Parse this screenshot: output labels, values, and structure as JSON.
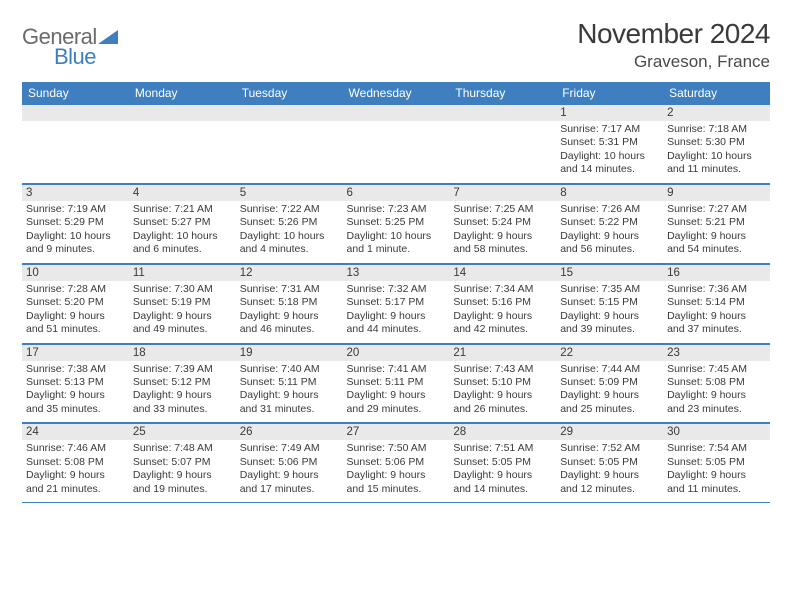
{
  "logo": {
    "part1": "General",
    "part2": "Blue"
  },
  "title": "November 2024",
  "location": "Graveson, France",
  "colors": {
    "header_bg": "#3f7fbf",
    "header_text": "#ffffff",
    "daynum_bg": "#e9e9e9",
    "border": "#3f7fbf",
    "text": "#3a3a3a",
    "logo_gray": "#6b6b6b",
    "logo_blue": "#3f7fbf"
  },
  "day_names": [
    "Sunday",
    "Monday",
    "Tuesday",
    "Wednesday",
    "Thursday",
    "Friday",
    "Saturday"
  ],
  "weeks": [
    [
      null,
      null,
      null,
      null,
      null,
      {
        "n": "1",
        "sr": "Sunrise: 7:17 AM",
        "ss": "Sunset: 5:31 PM",
        "dl1": "Daylight: 10 hours",
        "dl2": "and 14 minutes."
      },
      {
        "n": "2",
        "sr": "Sunrise: 7:18 AM",
        "ss": "Sunset: 5:30 PM",
        "dl1": "Daylight: 10 hours",
        "dl2": "and 11 minutes."
      }
    ],
    [
      {
        "n": "3",
        "sr": "Sunrise: 7:19 AM",
        "ss": "Sunset: 5:29 PM",
        "dl1": "Daylight: 10 hours",
        "dl2": "and 9 minutes."
      },
      {
        "n": "4",
        "sr": "Sunrise: 7:21 AM",
        "ss": "Sunset: 5:27 PM",
        "dl1": "Daylight: 10 hours",
        "dl2": "and 6 minutes."
      },
      {
        "n": "5",
        "sr": "Sunrise: 7:22 AM",
        "ss": "Sunset: 5:26 PM",
        "dl1": "Daylight: 10 hours",
        "dl2": "and 4 minutes."
      },
      {
        "n": "6",
        "sr": "Sunrise: 7:23 AM",
        "ss": "Sunset: 5:25 PM",
        "dl1": "Daylight: 10 hours",
        "dl2": "and 1 minute."
      },
      {
        "n": "7",
        "sr": "Sunrise: 7:25 AM",
        "ss": "Sunset: 5:24 PM",
        "dl1": "Daylight: 9 hours",
        "dl2": "and 58 minutes."
      },
      {
        "n": "8",
        "sr": "Sunrise: 7:26 AM",
        "ss": "Sunset: 5:22 PM",
        "dl1": "Daylight: 9 hours",
        "dl2": "and 56 minutes."
      },
      {
        "n": "9",
        "sr": "Sunrise: 7:27 AM",
        "ss": "Sunset: 5:21 PM",
        "dl1": "Daylight: 9 hours",
        "dl2": "and 54 minutes."
      }
    ],
    [
      {
        "n": "10",
        "sr": "Sunrise: 7:28 AM",
        "ss": "Sunset: 5:20 PM",
        "dl1": "Daylight: 9 hours",
        "dl2": "and 51 minutes."
      },
      {
        "n": "11",
        "sr": "Sunrise: 7:30 AM",
        "ss": "Sunset: 5:19 PM",
        "dl1": "Daylight: 9 hours",
        "dl2": "and 49 minutes."
      },
      {
        "n": "12",
        "sr": "Sunrise: 7:31 AM",
        "ss": "Sunset: 5:18 PM",
        "dl1": "Daylight: 9 hours",
        "dl2": "and 46 minutes."
      },
      {
        "n": "13",
        "sr": "Sunrise: 7:32 AM",
        "ss": "Sunset: 5:17 PM",
        "dl1": "Daylight: 9 hours",
        "dl2": "and 44 minutes."
      },
      {
        "n": "14",
        "sr": "Sunrise: 7:34 AM",
        "ss": "Sunset: 5:16 PM",
        "dl1": "Daylight: 9 hours",
        "dl2": "and 42 minutes."
      },
      {
        "n": "15",
        "sr": "Sunrise: 7:35 AM",
        "ss": "Sunset: 5:15 PM",
        "dl1": "Daylight: 9 hours",
        "dl2": "and 39 minutes."
      },
      {
        "n": "16",
        "sr": "Sunrise: 7:36 AM",
        "ss": "Sunset: 5:14 PM",
        "dl1": "Daylight: 9 hours",
        "dl2": "and 37 minutes."
      }
    ],
    [
      {
        "n": "17",
        "sr": "Sunrise: 7:38 AM",
        "ss": "Sunset: 5:13 PM",
        "dl1": "Daylight: 9 hours",
        "dl2": "and 35 minutes."
      },
      {
        "n": "18",
        "sr": "Sunrise: 7:39 AM",
        "ss": "Sunset: 5:12 PM",
        "dl1": "Daylight: 9 hours",
        "dl2": "and 33 minutes."
      },
      {
        "n": "19",
        "sr": "Sunrise: 7:40 AM",
        "ss": "Sunset: 5:11 PM",
        "dl1": "Daylight: 9 hours",
        "dl2": "and 31 minutes."
      },
      {
        "n": "20",
        "sr": "Sunrise: 7:41 AM",
        "ss": "Sunset: 5:11 PM",
        "dl1": "Daylight: 9 hours",
        "dl2": "and 29 minutes."
      },
      {
        "n": "21",
        "sr": "Sunrise: 7:43 AM",
        "ss": "Sunset: 5:10 PM",
        "dl1": "Daylight: 9 hours",
        "dl2": "and 26 minutes."
      },
      {
        "n": "22",
        "sr": "Sunrise: 7:44 AM",
        "ss": "Sunset: 5:09 PM",
        "dl1": "Daylight: 9 hours",
        "dl2": "and 25 minutes."
      },
      {
        "n": "23",
        "sr": "Sunrise: 7:45 AM",
        "ss": "Sunset: 5:08 PM",
        "dl1": "Daylight: 9 hours",
        "dl2": "and 23 minutes."
      }
    ],
    [
      {
        "n": "24",
        "sr": "Sunrise: 7:46 AM",
        "ss": "Sunset: 5:08 PM",
        "dl1": "Daylight: 9 hours",
        "dl2": "and 21 minutes."
      },
      {
        "n": "25",
        "sr": "Sunrise: 7:48 AM",
        "ss": "Sunset: 5:07 PM",
        "dl1": "Daylight: 9 hours",
        "dl2": "and 19 minutes."
      },
      {
        "n": "26",
        "sr": "Sunrise: 7:49 AM",
        "ss": "Sunset: 5:06 PM",
        "dl1": "Daylight: 9 hours",
        "dl2": "and 17 minutes."
      },
      {
        "n": "27",
        "sr": "Sunrise: 7:50 AM",
        "ss": "Sunset: 5:06 PM",
        "dl1": "Daylight: 9 hours",
        "dl2": "and 15 minutes."
      },
      {
        "n": "28",
        "sr": "Sunrise: 7:51 AM",
        "ss": "Sunset: 5:05 PM",
        "dl1": "Daylight: 9 hours",
        "dl2": "and 14 minutes."
      },
      {
        "n": "29",
        "sr": "Sunrise: 7:52 AM",
        "ss": "Sunset: 5:05 PM",
        "dl1": "Daylight: 9 hours",
        "dl2": "and 12 minutes."
      },
      {
        "n": "30",
        "sr": "Sunrise: 7:54 AM",
        "ss": "Sunset: 5:05 PM",
        "dl1": "Daylight: 9 hours",
        "dl2": "and 11 minutes."
      }
    ]
  ]
}
